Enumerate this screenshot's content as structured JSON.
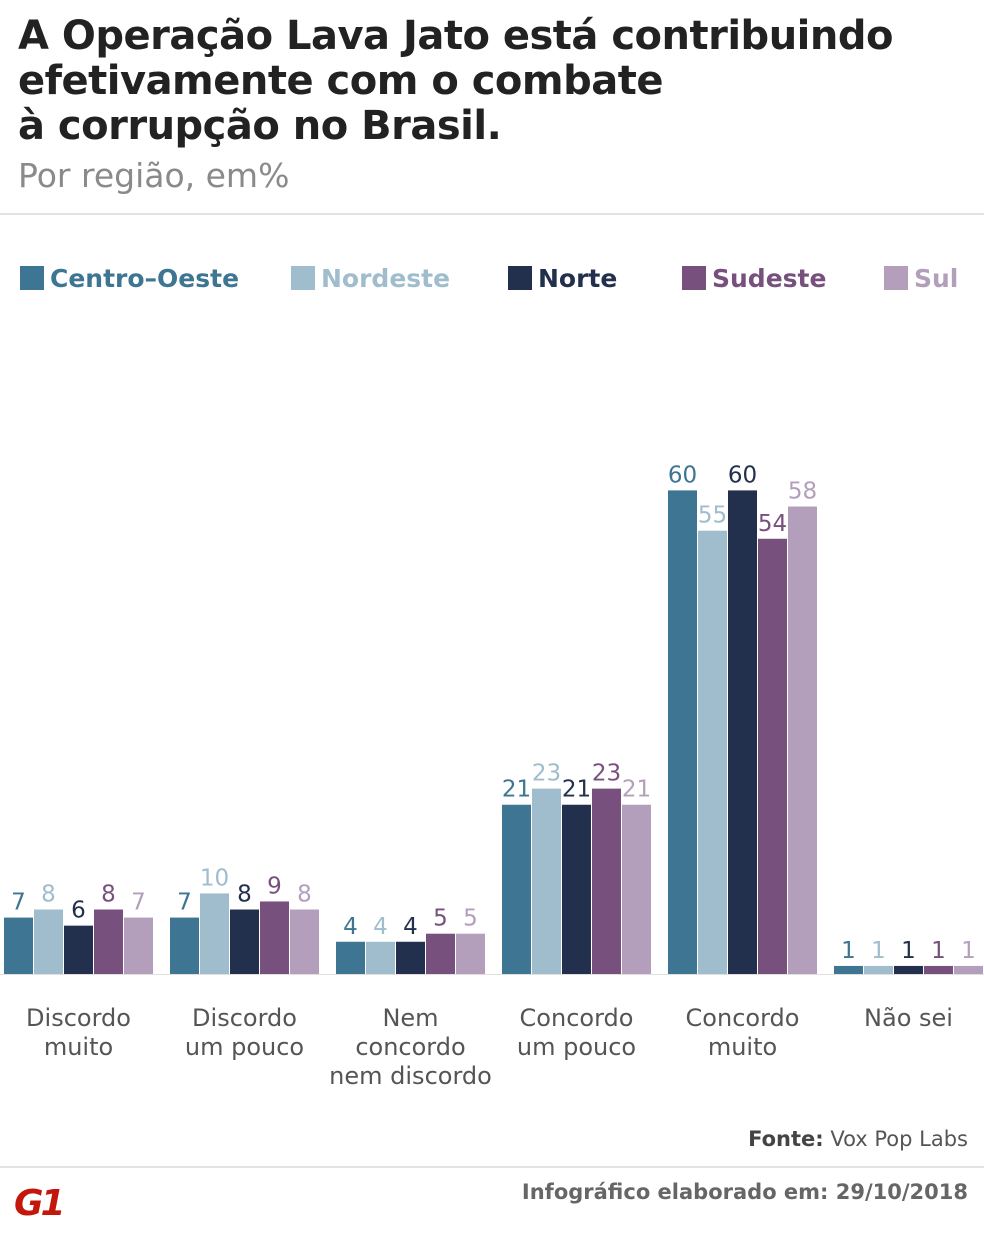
{
  "title_lines": [
    "A Operação Lava Jato está contribuindo",
    "efetivamente com o combate",
    "à corrupção no Brasil."
  ],
  "subtitle": "Por região, em%",
  "chart_data": {
    "type": "bar",
    "title": "A Operação Lava Jato está contribuindo efetivamente com o combate à corrupção no Brasil.",
    "subtitle": "Por região, em%",
    "categories": [
      [
        "Discordo",
        "muito"
      ],
      [
        "Discordo",
        "um pouco"
      ],
      [
        "Nem",
        "concordo",
        "nem discordo"
      ],
      [
        "Concordo",
        "um pouco"
      ],
      [
        "Concordo",
        "muito"
      ],
      [
        "Não sei"
      ]
    ],
    "series": [
      {
        "name": "Centro–Oeste",
        "color": "#3d7592",
        "values": [
          7,
          7,
          4,
          21,
          60,
          1
        ]
      },
      {
        "name": "Nordeste",
        "color": "#9fbdcd",
        "values": [
          8,
          10,
          4,
          23,
          55,
          1
        ]
      },
      {
        "name": "Norte",
        "color": "#22304d",
        "values": [
          6,
          8,
          4,
          21,
          60,
          1
        ]
      },
      {
        "name": "Sudeste",
        "color": "#77507e",
        "values": [
          8,
          9,
          5,
          23,
          54,
          1
        ]
      },
      {
        "name": "Sul",
        "color": "#b39fbb",
        "values": [
          7,
          8,
          5,
          21,
          58,
          1
        ]
      }
    ],
    "ylim": [
      0,
      60
    ],
    "xlabel": "",
    "ylabel": "",
    "grid": false,
    "legend": "top"
  },
  "source": {
    "label": "Fonte:",
    "value": "Vox Pop Labs"
  },
  "logo_text": "G1",
  "credit": "Infográfico elaborado em: 29/10/2018",
  "colors": {
    "title": "#222222",
    "subtitle": "#8a8a8a",
    "brand": "#c4170c"
  }
}
